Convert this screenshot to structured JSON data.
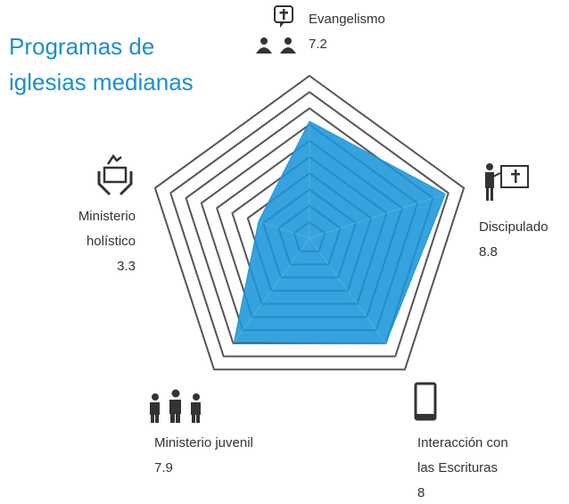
{
  "chart_data": {
    "type": "radar",
    "title": "Programas de iglesias medianas",
    "categories": [
      "Evangelismo",
      "Discipulado",
      "Interacción con las Escrituras",
      "Ministerio juvenil",
      "Ministerio holístico"
    ],
    "values": [
      7.2,
      8.8,
      8.0,
      7.9,
      3.3
    ],
    "color": "#1a96d9",
    "rlim": [
      0,
      10
    ],
    "rticks": [
      1,
      2,
      3,
      4,
      5,
      6,
      7,
      8,
      9,
      10
    ],
    "grid": true
  }
}
